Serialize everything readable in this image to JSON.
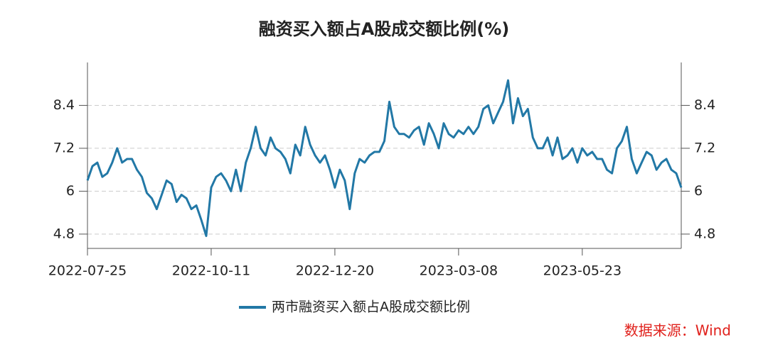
{
  "chart_data": {
    "type": "line",
    "title": "融资买入额占A股成交额比例(%)",
    "categories": [
      "2022-07-25",
      null,
      null,
      null,
      null,
      null,
      null,
      null,
      null,
      null,
      null,
      null,
      null,
      null,
      null,
      null,
      null,
      null,
      null,
      null,
      null,
      null,
      null,
      null,
      null,
      "2022-10-11",
      null,
      null,
      null,
      null,
      null,
      null,
      null,
      null,
      null,
      null,
      null,
      null,
      null,
      null,
      null,
      null,
      null,
      null,
      null,
      null,
      null,
      null,
      null,
      null,
      "2022-12-20",
      null,
      null,
      null,
      null,
      null,
      null,
      null,
      null,
      null,
      null,
      null,
      null,
      null,
      null,
      null,
      null,
      null,
      null,
      null,
      null,
      null,
      null,
      null,
      null,
      "2023-03-08",
      null,
      null,
      null,
      null,
      null,
      null,
      null,
      null,
      null,
      null,
      null,
      null,
      null,
      null,
      null,
      null,
      null,
      null,
      null,
      null,
      null,
      null,
      null,
      null,
      "2023-05-23",
      null,
      null,
      null,
      null,
      null,
      null,
      null,
      null,
      null,
      null,
      null,
      null,
      null,
      null,
      null,
      null,
      null,
      null,
      null,
      null
    ],
    "series": [
      {
        "name": "两市融资买入额占A股成交额比例",
        "color": "#2278a6",
        "values": [
          6.3,
          6.7,
          6.8,
          6.4,
          6.5,
          6.8,
          7.2,
          6.8,
          6.9,
          6.9,
          6.6,
          6.4,
          5.95,
          5.8,
          5.5,
          5.9,
          6.3,
          6.2,
          5.7,
          5.9,
          5.8,
          5.5,
          5.6,
          5.2,
          4.75,
          6.1,
          6.4,
          6.5,
          6.3,
          6.0,
          6.6,
          6.0,
          6.8,
          7.2,
          7.8,
          7.2,
          7.0,
          7.5,
          7.2,
          7.1,
          6.9,
          6.5,
          7.3,
          7.0,
          7.8,
          7.3,
          7.0,
          6.8,
          7.0,
          6.6,
          6.1,
          6.6,
          6.3,
          5.5,
          6.5,
          6.9,
          6.8,
          7.0,
          7.1,
          7.1,
          7.4,
          8.5,
          7.8,
          7.6,
          7.6,
          7.5,
          7.7,
          7.8,
          7.3,
          7.9,
          7.6,
          7.2,
          7.9,
          7.6,
          7.5,
          7.7,
          7.6,
          7.8,
          7.6,
          7.8,
          8.3,
          8.4,
          7.9,
          8.2,
          8.5,
          9.1,
          7.9,
          8.6,
          8.1,
          8.3,
          7.5,
          7.2,
          7.2,
          7.5,
          7.0,
          7.5,
          6.9,
          7.0,
          7.2,
          6.8,
          7.2,
          7.0,
          7.1,
          6.9,
          6.9,
          6.6,
          6.5,
          7.2,
          7.4,
          7.8,
          6.9,
          6.5,
          6.8,
          7.1,
          7.0,
          6.6,
          6.8,
          6.9,
          6.6,
          6.5,
          6.1
        ]
      }
    ],
    "ylim": [
      4.4,
      9.6
    ],
    "yticks": [
      4.8,
      6,
      7.2,
      8.4
    ],
    "grid": true,
    "source": "数据来源：Wind"
  }
}
